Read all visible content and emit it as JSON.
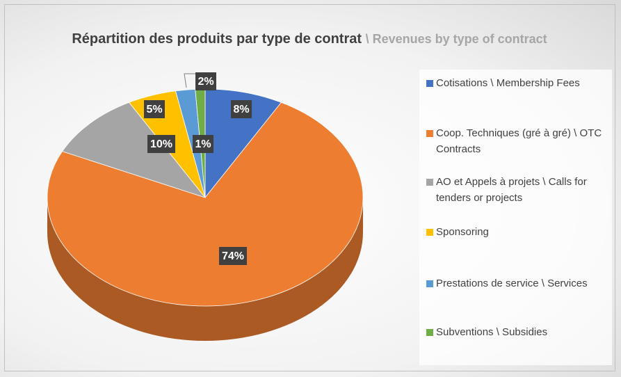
{
  "chart_data": {
    "type": "pie",
    "title": "Répartition des produits par type de contrat",
    "subtitle": "\\ Revenues by type of contract",
    "categories": [
      "Cotisations \\ Membership Fees",
      "Coop. Techniques (gré à gré) \\ OTC Contracts",
      "AO et Appels à projets \\ Calls for tenders or projects",
      "Sponsoring",
      "Prestations de service \\ Services",
      "Subventions \\ Subsidies"
    ],
    "values": [
      8,
      74,
      10,
      5,
      2,
      1
    ],
    "value_labels": [
      "8%",
      "74%",
      "10%",
      "5%",
      "2%",
      "1%"
    ],
    "colors": [
      "#4472c4",
      "#ed7d31",
      "#a5a5a5",
      "#ffc000",
      "#5b9bd5",
      "#70ad47"
    ],
    "legend": "right"
  }
}
